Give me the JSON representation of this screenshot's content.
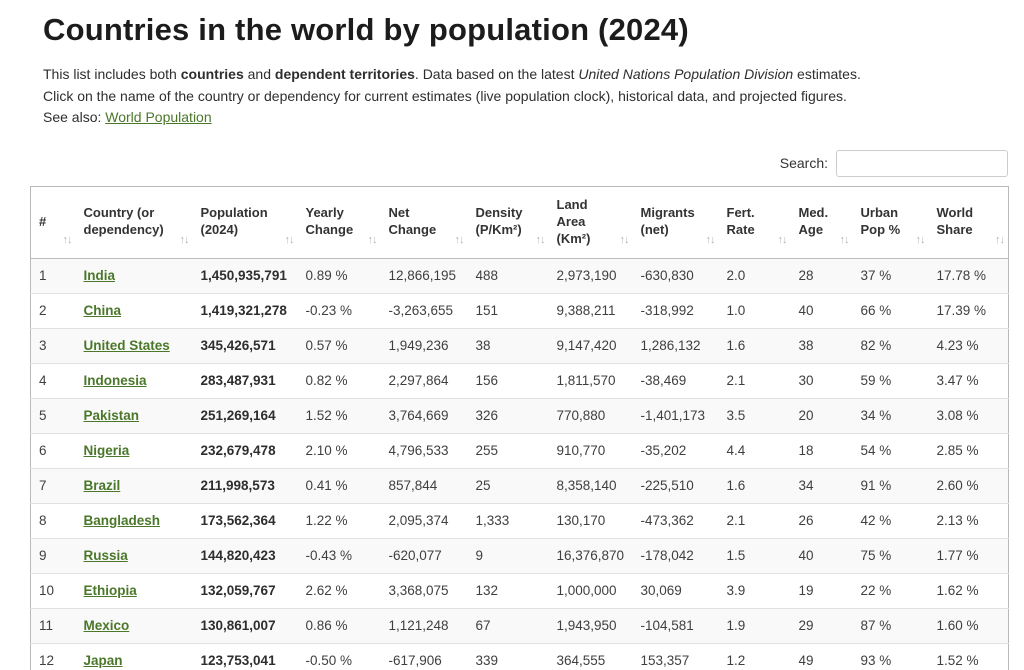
{
  "page": {
    "title": "Countries in the world by population (2024)",
    "intro": {
      "part1": "This list includes both ",
      "bold1": "countries",
      "part2": " and ",
      "bold2": "dependent territories",
      "part3": ". Data based on the latest ",
      "italic1": "United Nations Population Division",
      "part4": " estimates.",
      "line2": "Click on the name of the country or dependency for current estimates (live population clock), historical data, and projected figures.",
      "see_also_label": "See also: ",
      "see_also_link": "World Population"
    },
    "search": {
      "label": "Search:",
      "value": ""
    }
  },
  "colors": {
    "link_green": "#4a7729",
    "header_text": "#333333",
    "row_stripe": "#f9f9f9",
    "table_border": "#b9b9b9"
  },
  "icons": {
    "sort": "↑↓"
  },
  "table": {
    "columns": [
      {
        "key": "rank",
        "label": "#"
      },
      {
        "key": "country",
        "label": "Country (or dependency)"
      },
      {
        "key": "population",
        "label": "Population (2024)"
      },
      {
        "key": "yearly_change",
        "label": "Yearly Change"
      },
      {
        "key": "net_change",
        "label": "Net Change"
      },
      {
        "key": "density",
        "label": "Density (P/Km²)"
      },
      {
        "key": "land_area",
        "label": "Land Area (Km²)"
      },
      {
        "key": "migrants",
        "label": "Migrants (net)"
      },
      {
        "key": "fert_rate",
        "label": "Fert. Rate"
      },
      {
        "key": "med_age",
        "label": "Med. Age"
      },
      {
        "key": "urban_pop",
        "label": "Urban Pop %"
      },
      {
        "key": "world_share",
        "label": "World Share"
      }
    ],
    "rows": [
      {
        "rank": "1",
        "country": "India",
        "population": "1,450,935,791",
        "yearly_change": "0.89 %",
        "net_change": "12,866,195",
        "density": "488",
        "land_area": "2,973,190",
        "migrants": "-630,830",
        "fert_rate": "2.0",
        "med_age": "28",
        "urban_pop": "37 %",
        "world_share": "17.78 %"
      },
      {
        "rank": "2",
        "country": "China",
        "population": "1,419,321,278",
        "yearly_change": "-0.23 %",
        "net_change": "-3,263,655",
        "density": "151",
        "land_area": "9,388,211",
        "migrants": "-318,992",
        "fert_rate": "1.0",
        "med_age": "40",
        "urban_pop": "66 %",
        "world_share": "17.39 %"
      },
      {
        "rank": "3",
        "country": "United States",
        "population": "345,426,571",
        "yearly_change": "0.57 %",
        "net_change": "1,949,236",
        "density": "38",
        "land_area": "9,147,420",
        "migrants": "1,286,132",
        "fert_rate": "1.6",
        "med_age": "38",
        "urban_pop": "82 %",
        "world_share": "4.23 %"
      },
      {
        "rank": "4",
        "country": "Indonesia",
        "population": "283,487,931",
        "yearly_change": "0.82 %",
        "net_change": "2,297,864",
        "density": "156",
        "land_area": "1,811,570",
        "migrants": "-38,469",
        "fert_rate": "2.1",
        "med_age": "30",
        "urban_pop": "59 %",
        "world_share": "3.47 %"
      },
      {
        "rank": "5",
        "country": "Pakistan",
        "population": "251,269,164",
        "yearly_change": "1.52 %",
        "net_change": "3,764,669",
        "density": "326",
        "land_area": "770,880",
        "migrants": "-1,401,173",
        "fert_rate": "3.5",
        "med_age": "20",
        "urban_pop": "34 %",
        "world_share": "3.08 %"
      },
      {
        "rank": "6",
        "country": "Nigeria",
        "population": "232,679,478",
        "yearly_change": "2.10 %",
        "net_change": "4,796,533",
        "density": "255",
        "land_area": "910,770",
        "migrants": "-35,202",
        "fert_rate": "4.4",
        "med_age": "18",
        "urban_pop": "54 %",
        "world_share": "2.85 %"
      },
      {
        "rank": "7",
        "country": "Brazil",
        "population": "211,998,573",
        "yearly_change": "0.41 %",
        "net_change": "857,844",
        "density": "25",
        "land_area": "8,358,140",
        "migrants": "-225,510",
        "fert_rate": "1.6",
        "med_age": "34",
        "urban_pop": "91 %",
        "world_share": "2.60 %"
      },
      {
        "rank": "8",
        "country": "Bangladesh",
        "population": "173,562,364",
        "yearly_change": "1.22 %",
        "net_change": "2,095,374",
        "density": "1,333",
        "land_area": "130,170",
        "migrants": "-473,362",
        "fert_rate": "2.1",
        "med_age": "26",
        "urban_pop": "42 %",
        "world_share": "2.13 %"
      },
      {
        "rank": "9",
        "country": "Russia",
        "population": "144,820,423",
        "yearly_change": "-0.43 %",
        "net_change": "-620,077",
        "density": "9",
        "land_area": "16,376,870",
        "migrants": "-178,042",
        "fert_rate": "1.5",
        "med_age": "40",
        "urban_pop": "75 %",
        "world_share": "1.77 %"
      },
      {
        "rank": "10",
        "country": "Ethiopia",
        "population": "132,059,767",
        "yearly_change": "2.62 %",
        "net_change": "3,368,075",
        "density": "132",
        "land_area": "1,000,000",
        "migrants": "30,069",
        "fert_rate": "3.9",
        "med_age": "19",
        "urban_pop": "22 %",
        "world_share": "1.62 %"
      },
      {
        "rank": "11",
        "country": "Mexico",
        "population": "130,861,007",
        "yearly_change": "0.86 %",
        "net_change": "1,121,248",
        "density": "67",
        "land_area": "1,943,950",
        "migrants": "-104,581",
        "fert_rate": "1.9",
        "med_age": "29",
        "urban_pop": "87 %",
        "world_share": "1.60 %"
      },
      {
        "rank": "12",
        "country": "Japan",
        "population": "123,753,041",
        "yearly_change": "-0.50 %",
        "net_change": "-617,906",
        "density": "339",
        "land_area": "364,555",
        "migrants": "153,357",
        "fert_rate": "1.2",
        "med_age": "49",
        "urban_pop": "93 %",
        "world_share": "1.52 %"
      }
    ]
  }
}
